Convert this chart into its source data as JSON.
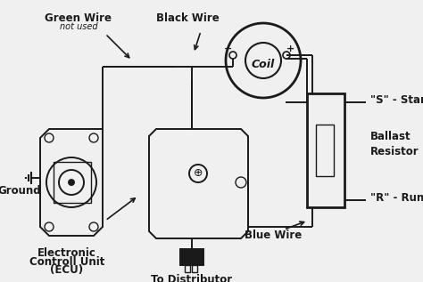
{
  "bg_color": "#f0f0f0",
  "line_color": "#1a1a1a",
  "labels": {
    "green_wire": "Green Wire",
    "not_used": "not used",
    "black_wire": "Black Wire",
    "coil": "Coil",
    "s_start": "\"S\" - Start",
    "ballast_resistor": "Ballast\nResistor",
    "r_run": "\"R\" - Run",
    "blue_wire": "Blue Wire",
    "ground": "Ground",
    "ecu_line1": "Electronic",
    "ecu_line2": "Controll Unit",
    "ecu_line3": "(ECU)",
    "distributor": "To Distributor"
  },
  "figsize": [
    4.74,
    3.17
  ],
  "dpi": 100
}
